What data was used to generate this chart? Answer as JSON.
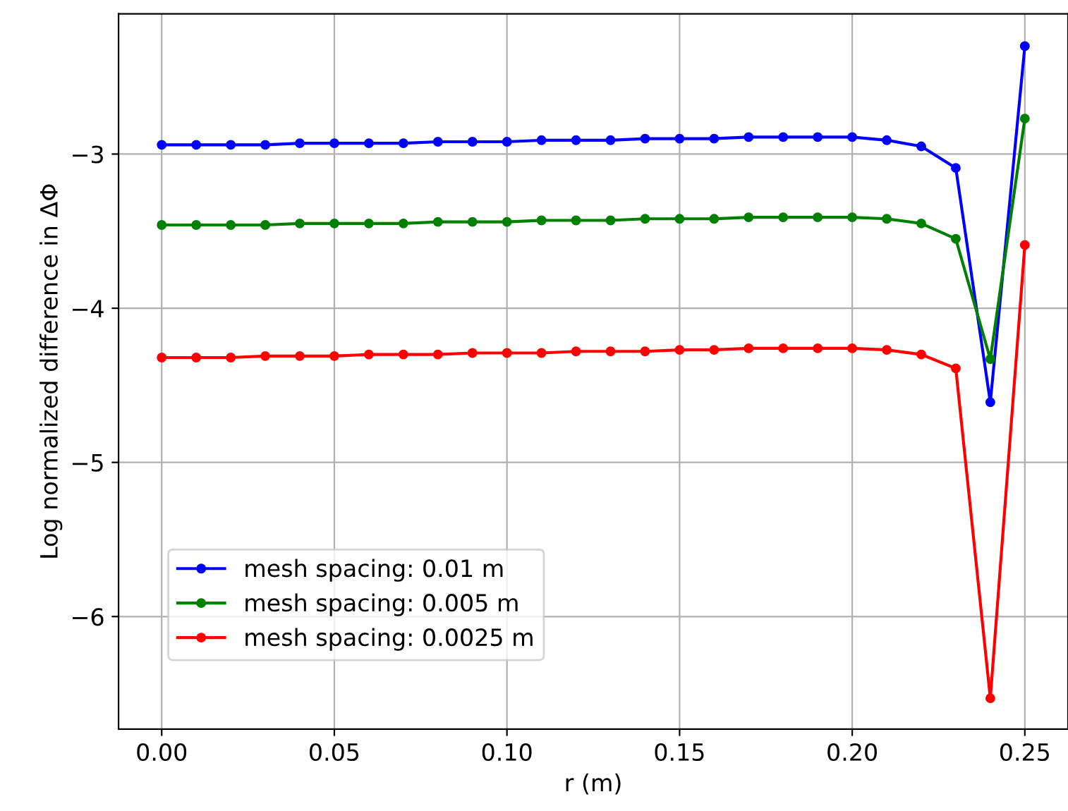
{
  "chart_data": {
    "type": "line",
    "xlabel": "r (m)",
    "ylabel": "Log normalized difference in ΔΦ",
    "x": [
      0.0,
      0.01,
      0.02,
      0.03,
      0.04,
      0.05,
      0.06,
      0.07,
      0.08,
      0.09,
      0.1,
      0.11,
      0.12,
      0.13,
      0.14,
      0.15,
      0.16,
      0.17,
      0.18,
      0.19,
      0.2,
      0.21,
      0.22,
      0.23,
      0.24,
      0.25
    ],
    "series": [
      {
        "name": "mesh spacing: 0.01 m",
        "color": "#0000ff",
        "values": [
          -2.94,
          -2.94,
          -2.94,
          -2.94,
          -2.93,
          -2.93,
          -2.93,
          -2.93,
          -2.92,
          -2.92,
          -2.92,
          -2.91,
          -2.91,
          -2.91,
          -2.9,
          -2.9,
          -2.9,
          -2.89,
          -2.89,
          -2.89,
          -2.89,
          -2.91,
          -2.95,
          -3.09,
          -4.61,
          -2.3
        ]
      },
      {
        "name": "mesh spacing: 0.005 m",
        "color": "#008000",
        "values": [
          -3.46,
          -3.46,
          -3.46,
          -3.46,
          -3.45,
          -3.45,
          -3.45,
          -3.45,
          -3.44,
          -3.44,
          -3.44,
          -3.43,
          -3.43,
          -3.43,
          -3.42,
          -3.42,
          -3.42,
          -3.41,
          -3.41,
          -3.41,
          -3.41,
          -3.42,
          -3.45,
          -3.55,
          -4.33,
          -2.77
        ]
      },
      {
        "name": "mesh spacing: 0.0025 m",
        "color": "#ff0000",
        "values": [
          -4.32,
          -4.32,
          -4.32,
          -4.31,
          -4.31,
          -4.31,
          -4.3,
          -4.3,
          -4.3,
          -4.29,
          -4.29,
          -4.29,
          -4.28,
          -4.28,
          -4.28,
          -4.27,
          -4.27,
          -4.26,
          -4.26,
          -4.26,
          -4.26,
          -4.27,
          -4.3,
          -4.39,
          -6.53,
          -3.59
        ]
      }
    ],
    "xlim": [
      -0.0125,
      0.2625
    ],
    "ylim": [
      -6.73,
      -2.09
    ],
    "xticks": [
      {
        "value": 0.0,
        "label": "0.00"
      },
      {
        "value": 0.05,
        "label": "0.05"
      },
      {
        "value": 0.1,
        "label": "0.10"
      },
      {
        "value": 0.15,
        "label": "0.15"
      },
      {
        "value": 0.2,
        "label": "0.20"
      },
      {
        "value": 0.25,
        "label": "0.25"
      }
    ],
    "yticks": [
      {
        "value": -6,
        "label": "−6"
      },
      {
        "value": -5,
        "label": "−5"
      },
      {
        "value": -4,
        "label": "−4"
      },
      {
        "value": -3,
        "label": "−3"
      }
    ],
    "grid": true,
    "legend": "bottom left",
    "marker": "circle",
    "line_style": "solid"
  }
}
